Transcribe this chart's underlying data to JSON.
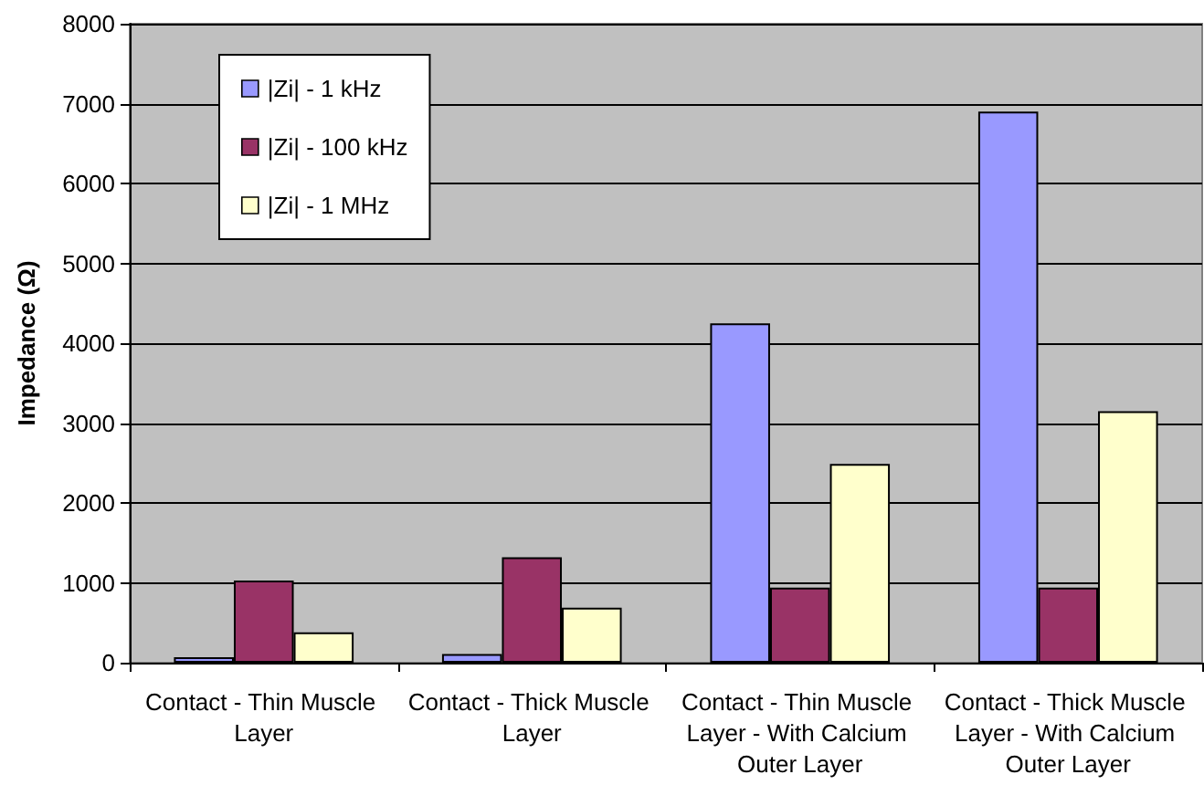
{
  "chart_data": {
    "type": "bar",
    "ylabel": "Impedance (Ω)",
    "categories": [
      "Contact - Thin Muscle Layer",
      "Contact - Thick Muscle Layer",
      "Contact - Thin Muscle Layer - With Calcium Outer Layer",
      "Contact - Thick Muscle Layer - With Calcium Outer Layer"
    ],
    "series": [
      {
        "name": "|Zi| - 1 kHz",
        "color": "#9999ff",
        "values": [
          70,
          110,
          4250,
          6900
        ]
      },
      {
        "name": "|Zi| - 100 kHz",
        "color": "#993366",
        "values": [
          1030,
          1320,
          940,
          940
        ]
      },
      {
        "name": "|Zi| - 1 MHz",
        "color": "#ffffcc",
        "values": [
          380,
          690,
          2490,
          3150
        ]
      }
    ],
    "ylim": [
      0,
      8000
    ],
    "yticks": [
      0,
      1000,
      2000,
      3000,
      4000,
      5000,
      6000,
      7000,
      8000
    ],
    "grid": "y",
    "legend": "top left"
  }
}
